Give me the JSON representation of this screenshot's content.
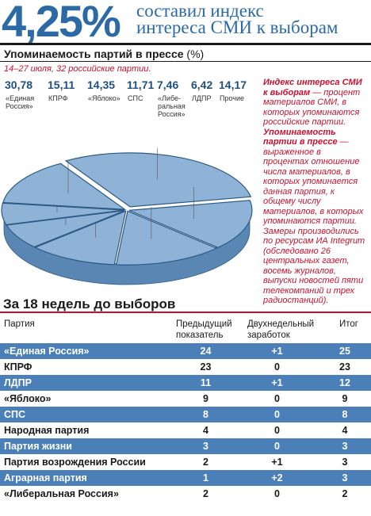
{
  "header": {
    "big": "4,25%",
    "line1": "составил индекс",
    "line2": "интереса СМИ к выборам"
  },
  "chart_title": {
    "text": "Упоминаемость партий в прессе",
    "unit": "(%)"
  },
  "chart_subtitle": "14–27 июля, 32 российские партии.",
  "chart_data": {
    "type": "pie",
    "title": "Упоминаемость партий в прессе (%)",
    "categories": [
      "«Единая Россия»",
      "КПРФ",
      "«Яблоко»",
      "СПС",
      "«Либеральная Россия»",
      "ЛДПР",
      "Прочие"
    ],
    "values": [
      30.78,
      15.11,
      14.35,
      11.71,
      7.46,
      6.42,
      14.17
    ],
    "value_labels": [
      "30,78",
      "15,11",
      "14,35",
      "11,71",
      "7,46",
      "6,42",
      "14,17"
    ],
    "label_lines": [
      [
        "«Единая",
        "Россия»"
      ],
      [
        "КПРФ"
      ],
      [
        "«Яблоко»"
      ],
      [
        "СПС"
      ],
      [
        "«Либе-",
        "ральная",
        "Россия»"
      ],
      [
        "ЛДПР"
      ],
      [
        "Прочие"
      ]
    ]
  },
  "note": {
    "t1": "Индекс интереса СМИ к выборам",
    "p1": " — процент материалов СМИ, в которых упоминаются российские партии.",
    "t2": "Упоминаемость партии в прессе",
    "p2": " — выраженное в процентах отношение числа материалов, в которых упоминается данная партия, к общему числу материалов, в которых упоминаются партии. Замеры производились по ресурсам ИА Integrum (обследовано 26 центральных газет, восемь журналов, выпуски новостей пяти телекомпаний и трех радиостанций)."
  },
  "table": {
    "section_title": "За 18 недель до выборов",
    "headers": {
      "party": "Партия",
      "prev": [
        "Предыдущий",
        "показатель"
      ],
      "two_week": [
        "Двухнедельный",
        "заработок"
      ],
      "total": "Итог"
    },
    "rows": [
      {
        "party": "«Единая Россия»",
        "prev": "24",
        "gain": "+1",
        "total": "25"
      },
      {
        "party": "КПРФ",
        "prev": "23",
        "gain": "0",
        "total": "23"
      },
      {
        "party": "ЛДПР",
        "prev": "11",
        "gain": "+1",
        "total": "12"
      },
      {
        "party": "«Яблоко»",
        "prev": "9",
        "gain": "0",
        "total": "9"
      },
      {
        "party": "СПС",
        "prev": "8",
        "gain": "0",
        "total": "8"
      },
      {
        "party": "Народная партия",
        "prev": "4",
        "gain": "0",
        "total": "4"
      },
      {
        "party": "Партия жизни",
        "prev": "3",
        "gain": "0",
        "total": "3"
      },
      {
        "party": "Партия возрождения России",
        "prev": "2",
        "gain": "+1",
        "total": "3"
      },
      {
        "party": "Аграрная партия",
        "prev": "1",
        "gain": "+2",
        "total": "3"
      },
      {
        "party": "«Либеральная Россия»",
        "prev": "2",
        "gain": "0",
        "total": "2"
      }
    ]
  },
  "colors": {
    "accent": "#2b6aa5",
    "red": "#c8102e",
    "pie_top": "#8fb3d6",
    "pie_side": "#5a86b3",
    "row_blue": "#4a7fb8"
  }
}
